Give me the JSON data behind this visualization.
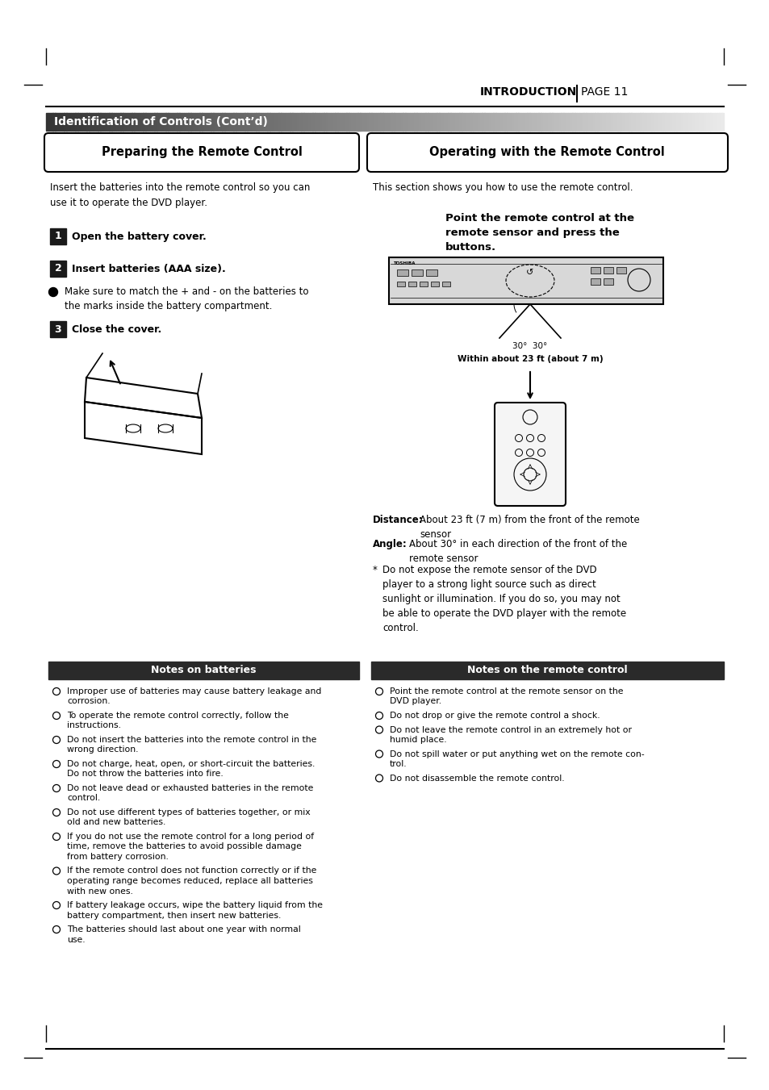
{
  "page_bg": "#ffffff",
  "section_header_text": "Identification of Controls (Cont’d)",
  "left_box_text": "Preparing the Remote Control",
  "right_box_text": "Operating with the Remote Control",
  "left_intro": "Insert the batteries into the remote control so you can\nuse it to operate the DVD player.",
  "right_intro": "This section shows you how to use the remote control.",
  "bold_instruction": "Point the remote control at the\nremote sensor and press the\nbuttons.",
  "step1_text": "Open the battery cover.",
  "step2_text": "Insert batteries (AAA size).",
  "bullet_text": "Make sure to match the + and - on the batteries to\nthe marks inside the battery compartment.",
  "step3_text": "Close the cover.",
  "angle_label": "30°  30°",
  "distance_label": "Within about 23 ft (about 7 m)",
  "distance_info_label": "Distance:",
  "distance_info_val": "About 23 ft (7 m) from the front of the remote\nsensor",
  "angle_info_label": "Angle:",
  "angle_info_val": "About 30° in each direction of the front of the\nremote sensor",
  "star_info": "Do not expose the remote sensor of the DVD\nplayer to a strong light source such as direct\nsunlight or illumination. If you do so, you may not\nbe able to operate the DVD player with the remote\ncontrol.",
  "notes_left_header": "Notes on batteries",
  "notes_right_header": "Notes on the remote control",
  "notes_header_bg": "#2a2a2a",
  "notes_left": [
    "Improper use of batteries may cause battery leakage and\ncorrosion.",
    "To operate the remote control correctly, follow the\ninstructions.",
    "Do not insert the batteries into the remote control in the\nwrong direction.",
    "Do not charge, heat, open, or short-circuit the batteries.\nDo not throw the batteries into fire.",
    "Do not leave dead or exhausted batteries in the remote\ncontrol.",
    "Do not use different types of batteries together, or mix\nold and new batteries.",
    "If you do not use the remote control for a long period of\ntime, remove the batteries to avoid possible damage\nfrom battery corrosion.",
    "If the remote control does not function correctly or if the\noperating range becomes reduced, replace all batteries\nwith new ones.",
    "If battery leakage occurs, wipe the battery liquid from the\nbattery compartment, then insert new batteries.",
    "The batteries should last about one year with normal\nuse."
  ],
  "notes_right": [
    "Point the remote control at the remote sensor on the\nDVD player.",
    "Do not drop or give the remote control a shock.",
    "Do not leave the remote control in an extremely hot or\nhumid place.",
    "Do not spill water or put anything wet on the remote con-\ntrol.",
    "Do not disassemble the remote control."
  ]
}
